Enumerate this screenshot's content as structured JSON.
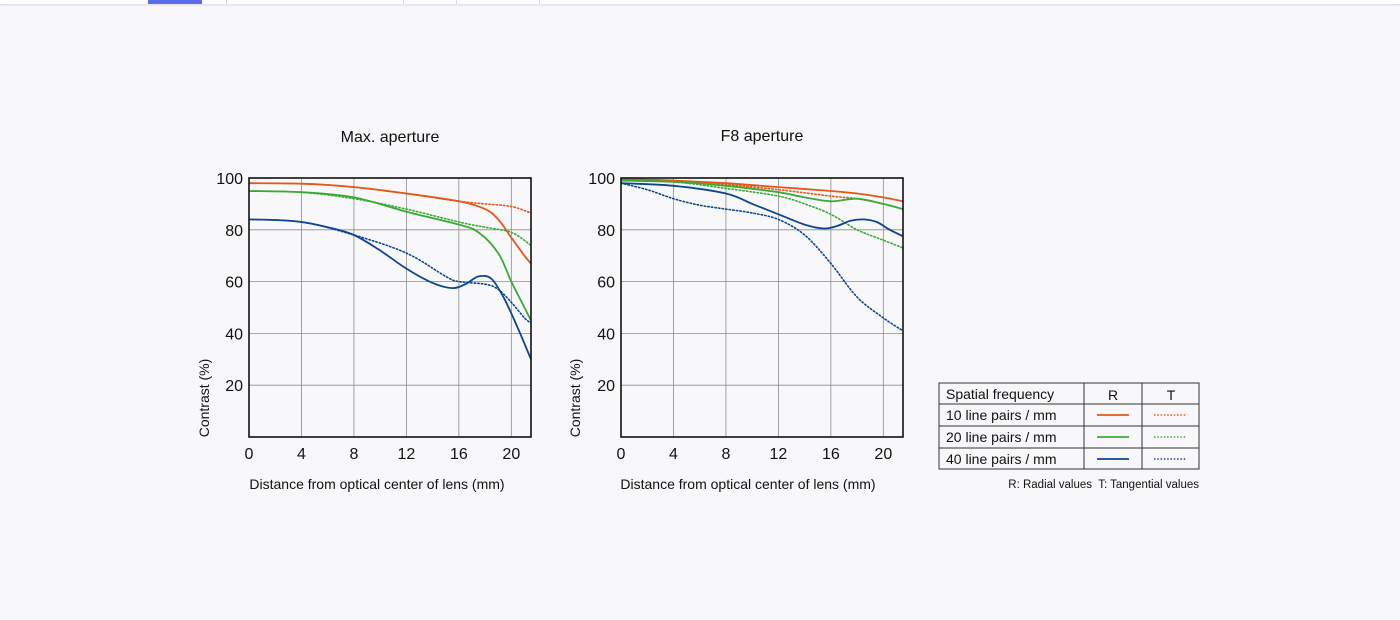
{
  "colors": {
    "freq10": "#e2581b",
    "freq20": "#3aaa35",
    "freq40": "#0d4593",
    "grid": "#8c8c8c",
    "background": "#f8f8fa"
  },
  "chart_data": [
    {
      "type": "line",
      "title": "Max. aperture",
      "xlabel": "Distance from optical center of lens (mm)",
      "ylabel": "Contrast (%)",
      "xlim": [
        0,
        21.5
      ],
      "ylim": [
        0,
        100
      ],
      "xticks": [
        0,
        4,
        8,
        12,
        16,
        20
      ],
      "yticks": [
        20,
        40,
        60,
        80,
        100
      ],
      "grid": true,
      "series": [
        {
          "name": "10 line pairs / mm R",
          "freq": "freq10",
          "style": "solid",
          "x": [
            0,
            4,
            8,
            12,
            16,
            18,
            19,
            20,
            21,
            21.5
          ],
          "y": [
            98,
            97.8,
            96.5,
            94,
            91,
            88,
            84,
            77,
            70,
            67
          ]
        },
        {
          "name": "10 line pairs / mm T",
          "freq": "freq10",
          "style": "dotted",
          "x": [
            0,
            4,
            8,
            12,
            16,
            18,
            20,
            21.5
          ],
          "y": [
            98,
            97.8,
            96.5,
            94,
            91,
            90,
            89,
            86.5
          ]
        },
        {
          "name": "20 line pairs / mm R",
          "freq": "freq20",
          "style": "solid",
          "x": [
            0,
            4,
            8,
            12,
            16,
            17.5,
            19,
            20,
            21,
            21.5
          ],
          "y": [
            95,
            94.5,
            92.5,
            87,
            82,
            79,
            71,
            60,
            50,
            45
          ]
        },
        {
          "name": "20 line pairs / mm T",
          "freq": "freq20",
          "style": "dotted",
          "x": [
            0,
            4,
            8,
            12,
            16,
            18,
            20,
            21.5
          ],
          "y": [
            95,
            94.5,
            92,
            88,
            83,
            81,
            79,
            74
          ]
        },
        {
          "name": "40 line pairs / mm R",
          "freq": "freq40",
          "style": "solid",
          "x": [
            0,
            2,
            4,
            6,
            8,
            10,
            12,
            14,
            15.5,
            16.5,
            17.5,
            18.5,
            19.5,
            20.5,
            21.5
          ],
          "y": [
            84,
            83.8,
            83,
            81,
            78,
            72,
            65,
            59.5,
            57.5,
            59,
            62,
            61,
            53,
            42,
            30
          ]
        },
        {
          "name": "40 line pairs / mm T",
          "freq": "freq40",
          "style": "dotted",
          "x": [
            0,
            4,
            8,
            12,
            15,
            16,
            18,
            19,
            20,
            21,
            21.5
          ],
          "y": [
            84,
            83,
            78,
            71,
            62,
            60,
            59,
            57,
            52,
            46,
            44
          ]
        }
      ]
    },
    {
      "type": "line",
      "title": "F8 aperture",
      "xlabel": "Distance from optical center of lens (mm)",
      "ylabel": "Contrast (%)",
      "xlim": [
        0,
        21.5
      ],
      "ylim": [
        0,
        100
      ],
      "xticks": [
        0,
        4,
        8,
        12,
        16,
        20
      ],
      "yticks": [
        20,
        40,
        60,
        80,
        100
      ],
      "grid": true,
      "series": [
        {
          "name": "10 line pairs / mm R",
          "freq": "freq10",
          "style": "solid",
          "x": [
            0,
            4,
            8,
            12,
            16,
            18,
            20,
            21.5
          ],
          "y": [
            99.5,
            99,
            98,
            96.5,
            95,
            94,
            92.5,
            91
          ]
        },
        {
          "name": "10 line pairs / mm T",
          "freq": "freq10",
          "style": "dotted",
          "x": [
            0,
            4,
            8,
            12,
            16,
            18,
            20,
            21.5
          ],
          "y": [
            99.5,
            99,
            97.5,
            95.5,
            93,
            92,
            90,
            88
          ]
        },
        {
          "name": "20 line pairs / mm R",
          "freq": "freq20",
          "style": "solid",
          "x": [
            0,
            4,
            8,
            12,
            14,
            16,
            18,
            20,
            21.5
          ],
          "y": [
            99,
            98.5,
            97,
            94.5,
            92.5,
            91,
            92,
            90,
            88
          ]
        },
        {
          "name": "20 line pairs / mm T",
          "freq": "freq20",
          "style": "dotted",
          "x": [
            0,
            4,
            8,
            12,
            14,
            16,
            18,
            20,
            21.5
          ],
          "y": [
            99,
            98.5,
            96,
            93,
            90,
            86,
            80,
            76,
            73
          ]
        },
        {
          "name": "40 line pairs / mm R",
          "freq": "freq40",
          "style": "solid",
          "x": [
            0,
            4,
            8,
            10,
            12,
            14,
            15.5,
            16.5,
            17.5,
            18.5,
            19.5,
            20.5,
            21.5
          ],
          "y": [
            98,
            97,
            94,
            90,
            86,
            82,
            80.5,
            81.5,
            83.5,
            84,
            83,
            80,
            77.5
          ]
        },
        {
          "name": "40 line pairs / mm T",
          "freq": "freq40",
          "style": "dotted",
          "x": [
            0,
            2,
            4,
            6,
            8,
            10,
            12,
            14,
            16,
            18,
            20,
            21.5
          ],
          "y": [
            98,
            95.5,
            92,
            89.5,
            88,
            86.5,
            84,
            78,
            67,
            54,
            46,
            41
          ]
        }
      ]
    }
  ],
  "legend": {
    "header": {
      "label": "Spatial frequency",
      "r": "R",
      "t": "T"
    },
    "rows": [
      {
        "label": "10 line pairs / mm",
        "freq": "freq10"
      },
      {
        "label": "20 line pairs / mm",
        "freq": "freq20"
      },
      {
        "label": "40 line pairs / mm",
        "freq": "freq40"
      }
    ],
    "note": "R: Radial values  T: Tangential values"
  }
}
